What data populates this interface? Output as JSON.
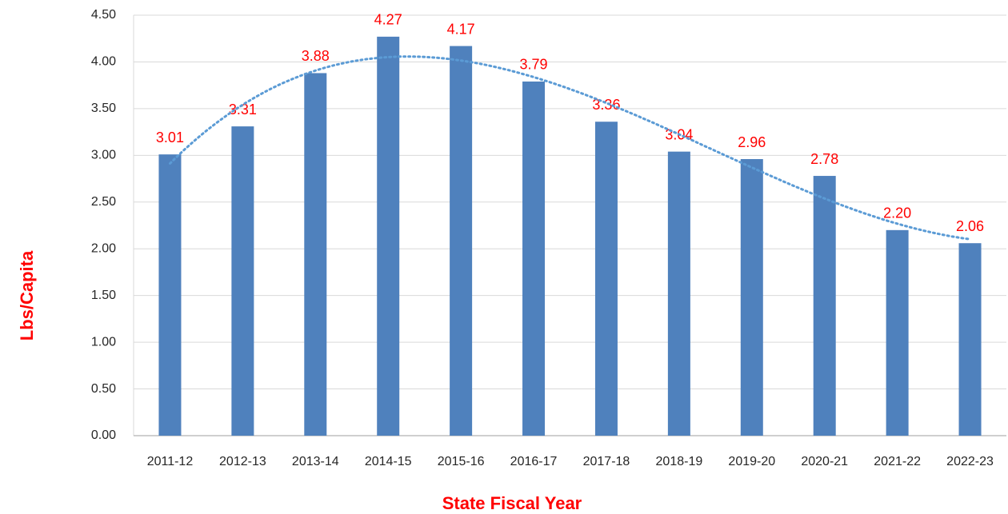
{
  "chart_data": {
    "type": "bar",
    "x_label": "State Fiscal Year",
    "y_label": "Lbs/Capita",
    "categories": [
      "2011-12",
      "2012-13",
      "2013-14",
      "2014-15",
      "2015-16",
      "2016-17",
      "2017-18",
      "2018-19",
      "2019-20",
      "2020-21",
      "2021-22",
      "2022-23"
    ],
    "values": [
      3.01,
      3.31,
      3.88,
      4.27,
      4.17,
      3.79,
      3.36,
      3.04,
      2.96,
      2.78,
      2.2,
      2.06
    ],
    "value_labels": [
      "3.01",
      "3.31",
      "3.88",
      "4.27",
      "4.17",
      "3.79",
      "3.36",
      "3.04",
      "2.96",
      "2.78",
      "2.20",
      "2.06"
    ],
    "color": "#4f81bd",
    "label_color": "#ff0000",
    "ylim": [
      0,
      4.5
    ],
    "yticks": [
      {
        "value": 0,
        "label": "0.00"
      },
      {
        "value": 0.5,
        "label": "0.50"
      },
      {
        "value": 1,
        "label": "1.00"
      },
      {
        "value": 1.5,
        "label": "1.50"
      },
      {
        "value": 2,
        "label": "2.00"
      },
      {
        "value": 2.5,
        "label": "2.50"
      },
      {
        "value": 3,
        "label": "3.00"
      },
      {
        "value": 3.5,
        "label": "3.50"
      },
      {
        "value": 4,
        "label": "4.00"
      },
      {
        "value": 4.5,
        "label": "4.50"
      }
    ],
    "grid": true,
    "trendline": {
      "type": "polynomial",
      "order": 3,
      "color": "#5b9bd5"
    }
  }
}
